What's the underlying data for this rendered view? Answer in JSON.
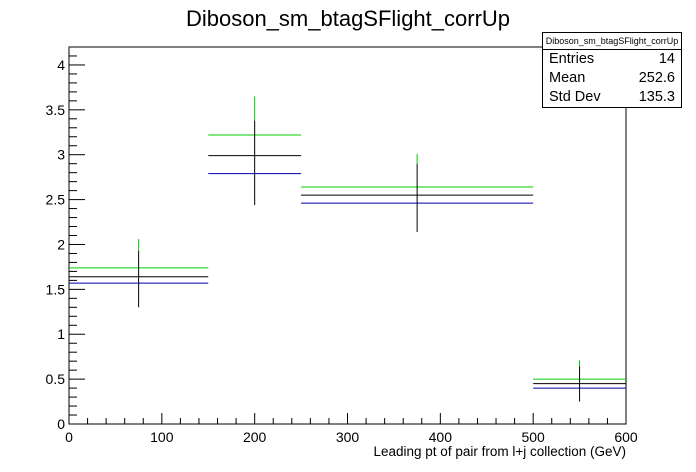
{
  "chart_data": {
    "type": "histogram-errorbars",
    "title": "Diboson_sm_btagSFlight_corrUp",
    "xlabel": "Leading pt of pair from l+j collection (GeV)",
    "ylabel": "",
    "xlim": [
      0,
      600
    ],
    "ylim": [
      0,
      4.2
    ],
    "x_ticks": [
      0,
      100,
      200,
      300,
      400,
      500,
      600
    ],
    "y_ticks": [
      0,
      0.5,
      1,
      1.5,
      2,
      2.5,
      3,
      3.5,
      4
    ],
    "bins": [
      {
        "x_low": 0,
        "x_high": 150,
        "center": 75,
        "nominal": 1.64,
        "up": 1.74,
        "down": 1.57,
        "err_low": 1.3,
        "err_high": 1.93,
        "up_err_high": 2.06
      },
      {
        "x_low": 150,
        "x_high": 250,
        "center": 200,
        "nominal": 2.99,
        "up": 3.22,
        "down": 2.79,
        "err_low": 2.44,
        "err_high": 3.38,
        "up_err_high": 3.65
      },
      {
        "x_low": 250,
        "x_high": 500,
        "center": 375,
        "nominal": 2.55,
        "up": 2.64,
        "down": 2.46,
        "err_low": 2.14,
        "err_high": 2.9,
        "up_err_high": 3.01
      },
      {
        "x_low": 500,
        "x_high": 600,
        "center": 550,
        "nominal": 0.45,
        "up": 0.5,
        "down": 0.4,
        "err_low": 0.25,
        "err_high": 0.64,
        "up_err_high": 0.71
      }
    ],
    "colors": {
      "nominal": "#000000",
      "up": "#00cc00",
      "down": "#0000aa"
    },
    "grid": false
  },
  "stats": {
    "title": "Diboson_sm_btagSFlight_corrUp",
    "entries_label": "Entries",
    "entries_value": "14",
    "mean_label": "Mean",
    "mean_value": "252.6",
    "stddev_label": "Std Dev",
    "stddev_value": "135.3"
  }
}
